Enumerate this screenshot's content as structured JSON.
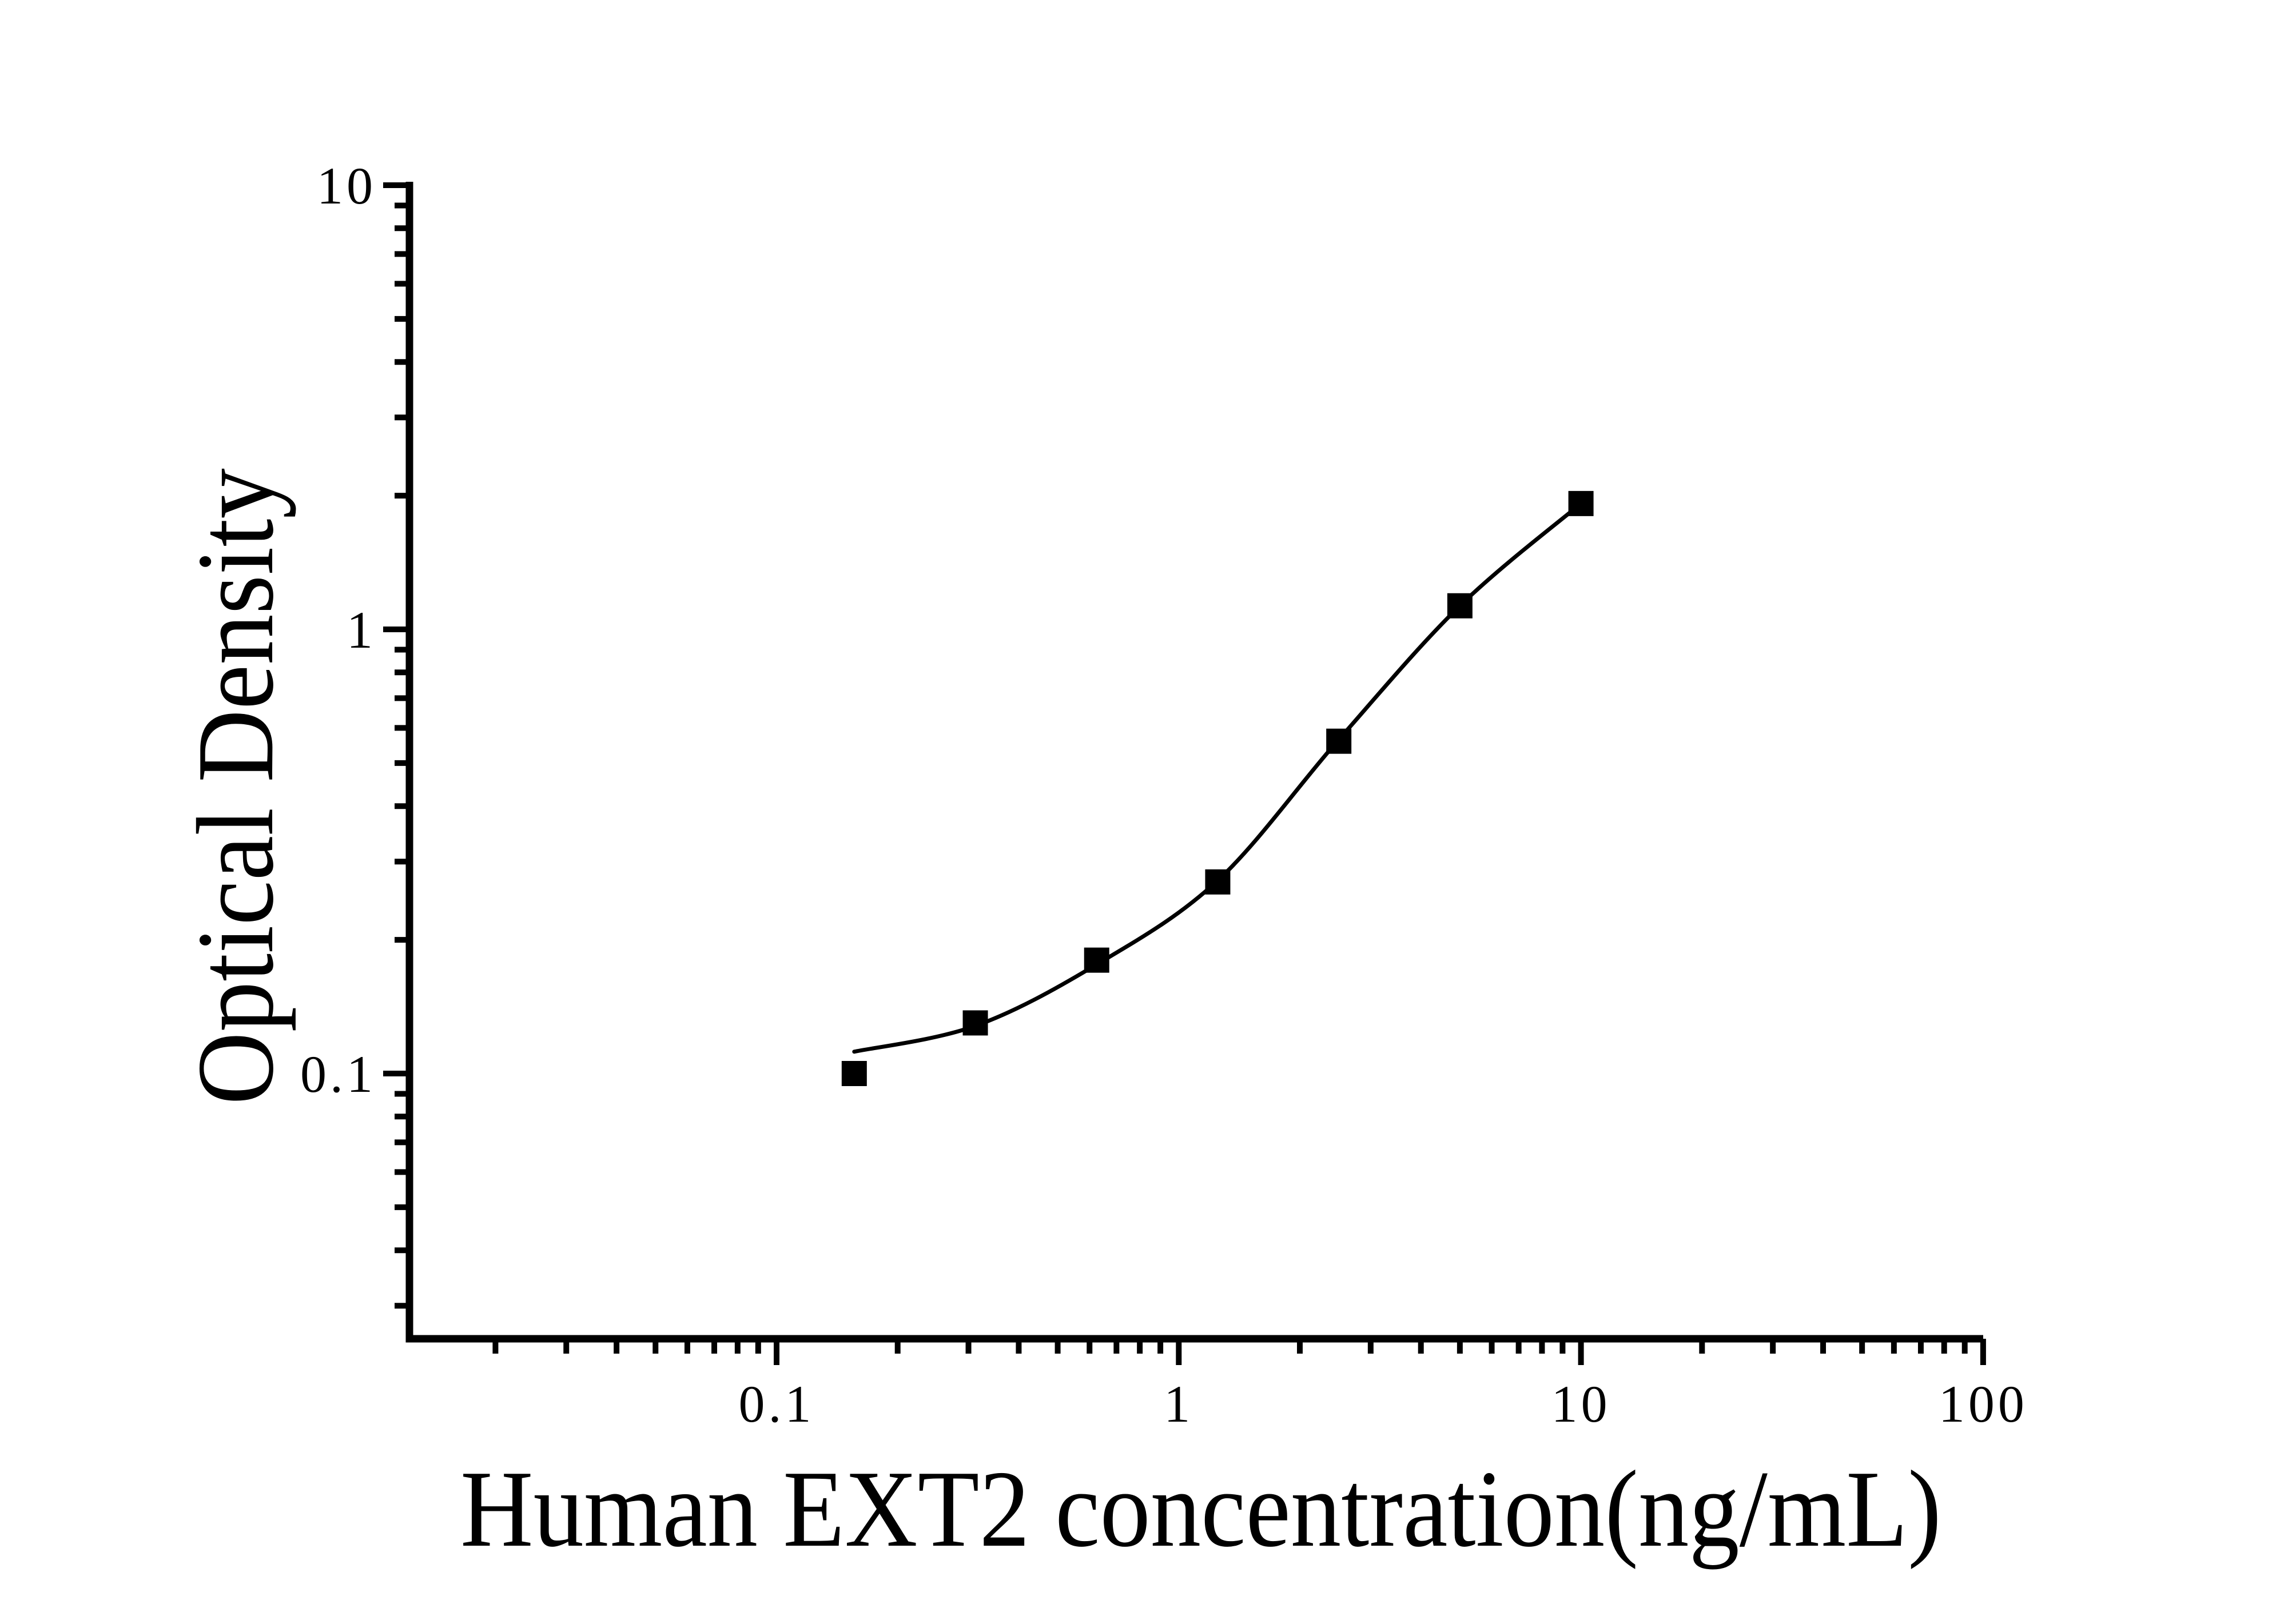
{
  "page": {
    "background_color": "#ffffff",
    "ink_color": "#000000"
  },
  "chart_data": {
    "type": "scatter",
    "title": "",
    "xlabel": "Human EXT2 concentration(ng/mL)",
    "ylabel": "Optical Density",
    "x_scale": "log",
    "y_scale": "log",
    "xlim": [
      0.012,
      100
    ],
    "ylim": [
      0.024,
      10
    ],
    "grid": false,
    "legend_position": "none",
    "frame": "L-shaped (left and bottom spines only), ticks outside",
    "x_ticks": {
      "labeled": [
        {
          "value": 0.1,
          "label": "0.1"
        },
        {
          "value": 1,
          "label": "1"
        },
        {
          "value": 10,
          "label": "10"
        },
        {
          "value": 100,
          "label": "100"
        }
      ],
      "minor": [
        0.02,
        0.03,
        0.04,
        0.05,
        0.06,
        0.07,
        0.08,
        0.09,
        0.2,
        0.3,
        0.4,
        0.5,
        0.6,
        0.7,
        0.8,
        0.9,
        2,
        3,
        4,
        5,
        6,
        7,
        8,
        9,
        20,
        30,
        40,
        50,
        60,
        70,
        80,
        90
      ]
    },
    "y_ticks": {
      "labeled": [
        {
          "value": 10,
          "label": "10"
        },
        {
          "value": 1,
          "label": "1"
        },
        {
          "value": 0.1,
          "label": "0.1"
        }
      ],
      "minor": [
        0.03,
        0.04,
        0.05,
        0.06,
        0.07,
        0.08,
        0.09,
        0.2,
        0.3,
        0.4,
        0.5,
        0.6,
        0.7,
        0.8,
        0.9,
        2,
        3,
        4,
        5,
        6,
        7,
        8,
        9
      ]
    },
    "series": [
      {
        "name": "standards",
        "type": "scatter",
        "marker": "filled-square",
        "color": "#000000",
        "points": [
          {
            "x": 0.156,
            "od": 0.1
          },
          {
            "x": 0.312,
            "od": 0.13
          },
          {
            "x": 0.625,
            "od": 0.18
          },
          {
            "x": 1.25,
            "od": 0.27
          },
          {
            "x": 2.5,
            "od": 0.56
          },
          {
            "x": 5,
            "od": 1.13
          },
          {
            "x": 10,
            "od": 1.92
          }
        ]
      },
      {
        "name": "fitted-curve",
        "type": "line",
        "color": "#000000",
        "points": [
          {
            "x": 0.156,
            "od": 0.112
          },
          {
            "x": 0.312,
            "od": 0.128
          },
          {
            "x": 0.625,
            "od": 0.176
          },
          {
            "x": 1.25,
            "od": 0.272
          },
          {
            "x": 2.5,
            "od": 0.565
          },
          {
            "x": 5,
            "od": 1.13
          },
          {
            "x": 10,
            "od": 1.92
          }
        ]
      }
    ]
  }
}
